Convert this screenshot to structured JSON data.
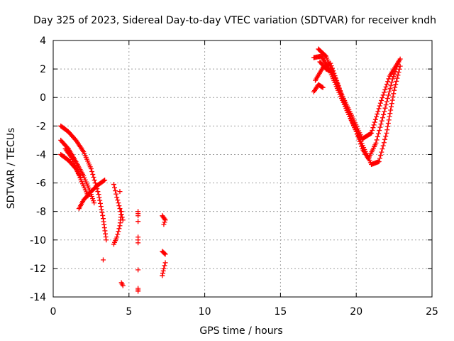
{
  "chart_data": {
    "type": "scatter",
    "title": "Day 325 of 2023, Sidereal Day-to-day VTEC variation (SDTVAR) for receiver kndh",
    "xlabel": "GPS time / hours",
    "ylabel": "SDTVAR / TECUs",
    "xlim": [
      0,
      25
    ],
    "ylim": [
      -14,
      4
    ],
    "xticks": [
      0,
      5,
      10,
      15,
      20,
      25
    ],
    "yticks": [
      -14,
      -12,
      -10,
      -8,
      -6,
      -4,
      -2,
      0,
      2,
      4
    ],
    "grid": true,
    "marker": "+",
    "series": [
      {
        "name": "SDTVAR",
        "color": "#ff0000",
        "tracks": [
          [
            [
              0.5,
              -2.0
            ],
            [
              1.0,
              -2.4
            ],
            [
              1.5,
              -3.0
            ],
            [
              2.0,
              -3.8
            ],
            [
              2.5,
              -5.0
            ],
            [
              3.0,
              -6.8
            ],
            [
              3.3,
              -8.5
            ],
            [
              3.5,
              -10.0
            ]
          ],
          [
            [
              0.5,
              -3.0
            ],
            [
              1.0,
              -3.6
            ],
            [
              1.5,
              -4.5
            ],
            [
              2.0,
              -5.5
            ],
            [
              2.4,
              -6.5
            ],
            [
              2.7,
              -7.4
            ]
          ],
          [
            [
              0.5,
              -4.0
            ],
            [
              1.0,
              -4.4
            ],
            [
              1.5,
              -5.0
            ],
            [
              1.8,
              -5.6
            ]
          ],
          [
            [
              0.8,
              -3.6
            ],
            [
              1.2,
              -4.2
            ],
            [
              1.6,
              -5.2
            ],
            [
              2.0,
              -6.2
            ],
            [
              2.3,
              -6.9
            ]
          ],
          [
            [
              1.7,
              -7.8
            ],
            [
              2.0,
              -7.2
            ],
            [
              2.5,
              -6.6
            ],
            [
              3.0,
              -6.1
            ],
            [
              3.4,
              -5.8
            ]
          ],
          [
            [
              3.3,
              -11.4
            ]
          ],
          [
            [
              4.0,
              -6.1
            ],
            [
              4.2,
              -7.0
            ],
            [
              4.4,
              -7.8
            ],
            [
              4.6,
              -8.6
            ]
          ],
          [
            [
              4.0,
              -10.3
            ],
            [
              4.2,
              -9.8
            ],
            [
              4.4,
              -9.0
            ],
            [
              4.5,
              -8.0
            ]
          ],
          [
            [
              4.4,
              -6.6
            ]
          ],
          [
            [
              4.5,
              -13.0
            ],
            [
              4.6,
              -13.2
            ]
          ],
          [
            [
              5.6,
              -8.0
            ],
            [
              5.6,
              -8.3
            ]
          ],
          [
            [
              5.6,
              -8.7
            ]
          ],
          [
            [
              5.6,
              -9.8
            ],
            [
              5.6,
              -10.2
            ]
          ],
          [
            [
              5.6,
              -12.1
            ]
          ],
          [
            [
              5.6,
              -13.4
            ],
            [
              5.6,
              -13.6
            ]
          ],
          [
            [
              7.2,
              -8.3
            ],
            [
              7.4,
              -8.6
            ],
            [
              7.3,
              -8.9
            ]
          ],
          [
            [
              7.2,
              -10.8
            ],
            [
              7.4,
              -11.0
            ]
          ],
          [
            [
              7.2,
              -12.5
            ],
            [
              7.3,
              -12.0
            ],
            [
              7.4,
              -11.6
            ]
          ],
          [
            [
              17.2,
              2.8
            ],
            [
              17.7,
              2.9
            ],
            [
              18.2,
              2.0
            ],
            [
              18.8,
              0.5
            ],
            [
              19.5,
              -1.2
            ],
            [
              20.2,
              -2.8
            ],
            [
              20.6,
              -3.8
            ],
            [
              21.0,
              -4.7
            ],
            [
              21.5,
              -4.5
            ],
            [
              22.0,
              -2.5
            ],
            [
              22.5,
              0.5
            ],
            [
              22.9,
              2.2
            ]
          ],
          [
            [
              17.5,
              3.4
            ],
            [
              18.0,
              2.9
            ],
            [
              18.6,
              1.4
            ],
            [
              19.3,
              -0.6
            ],
            [
              20.0,
              -2.4
            ],
            [
              20.4,
              -3.6
            ],
            [
              20.8,
              -4.3
            ],
            [
              21.3,
              -3.2
            ],
            [
              21.8,
              -1.2
            ],
            [
              22.4,
              1.3
            ],
            [
              22.8,
              2.5
            ]
          ],
          [
            [
              17.3,
              1.2
            ],
            [
              17.8,
              2.1
            ],
            [
              18.3,
              2.4
            ],
            [
              19.0,
              0.3
            ],
            [
              19.8,
              -1.5
            ],
            [
              20.4,
              -2.9
            ],
            [
              21.0,
              -2.5
            ],
            [
              21.6,
              -0.4
            ],
            [
              22.2,
              1.5
            ],
            [
              22.9,
              2.7
            ]
          ],
          [
            [
              17.2,
              0.4
            ],
            [
              17.5,
              0.9
            ],
            [
              17.8,
              0.7
            ]
          ],
          [
            [
              17.6,
              2.5
            ],
            [
              18.0,
              2.0
            ],
            [
              18.4,
              1.8
            ]
          ]
        ]
      }
    ]
  }
}
